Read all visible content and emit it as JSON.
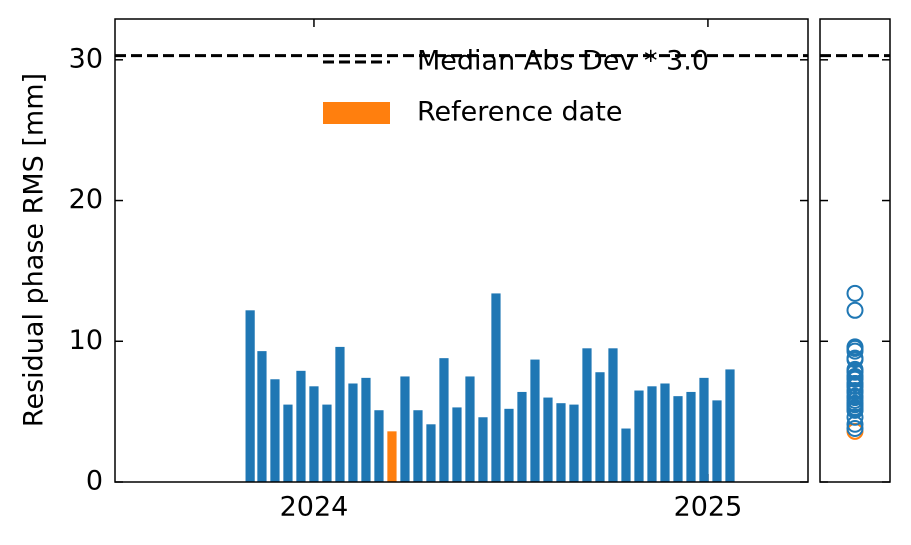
{
  "chart_data": {
    "type": "bar",
    "y_label": "Residual phase RMS [mm]",
    "x": [
      2023.838,
      2023.868,
      2023.901,
      2023.934,
      2023.967,
      2024.0,
      2024.033,
      2024.066,
      2024.099,
      2024.132,
      2024.165,
      2024.198,
      2024.231,
      2024.264,
      2024.297,
      2024.33,
      2024.363,
      2024.396,
      2024.429,
      2024.462,
      2024.495,
      2024.528,
      2024.561,
      2024.594,
      2024.627,
      2024.66,
      2024.693,
      2024.726,
      2024.759,
      2024.792,
      2024.825,
      2024.858,
      2024.891,
      2024.924,
      2024.957,
      2024.99,
      2025.023,
      2025.056
    ],
    "values": [
      12.2,
      9.3,
      7.3,
      5.5,
      7.9,
      6.8,
      5.5,
      9.6,
      7.0,
      7.4,
      5.1,
      3.6,
      7.5,
      5.1,
      4.1,
      8.8,
      5.3,
      7.5,
      4.6,
      13.4,
      5.2,
      6.4,
      8.7,
      6.0,
      5.6,
      5.5,
      9.5,
      7.8,
      9.5,
      3.8,
      6.5,
      6.8,
      7.0,
      6.1,
      6.4,
      7.4,
      5.8,
      8.0
    ],
    "color": "#1f77b4",
    "reference": {
      "name": "Reference date",
      "color": "#ff7f0e",
      "x": 2024.198
    },
    "threshold": {
      "name": "Median Abs Dev * 3.0",
      "value": 30.3,
      "color": "#000000"
    },
    "xlim": [
      2023.495,
      2025.254
    ],
    "xticks": [
      2024,
      2025
    ],
    "ylim": [
      0,
      32.9
    ],
    "yticks": [
      0,
      10,
      20,
      30
    ]
  }
}
